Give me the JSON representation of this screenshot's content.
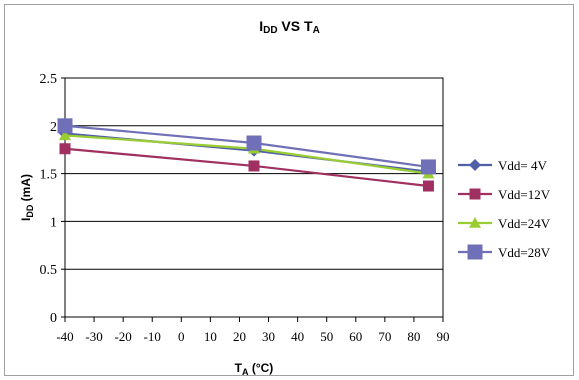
{
  "chart_data": {
    "type": "line",
    "title": {
      "main": "I",
      "sub": "DD",
      "mid": " VS T",
      "sub2": "A"
    },
    "xlabel": {
      "main": "T",
      "sub": "A",
      "rest": " (°C)"
    },
    "ylabel": {
      "main": "I",
      "sub": "DD",
      "rest": " (mA)"
    },
    "xlim": [
      -40,
      90
    ],
    "ylim": [
      0,
      2.5
    ],
    "x_ticks": [
      -40,
      -30,
      -20,
      -10,
      0,
      10,
      20,
      30,
      40,
      50,
      60,
      70,
      80,
      90
    ],
    "y_ticks": [
      0,
      0.5,
      1,
      1.5,
      2,
      2.5
    ],
    "y_tick_labels": [
      "0",
      "0.5",
      "1",
      "1.5",
      "2",
      "2.5"
    ],
    "grid": "horizontal",
    "legend_position": "right",
    "series": [
      {
        "name": "Vdd= 4V",
        "marker": "diamond",
        "color": "#4F5FA8",
        "x": [
          -40,
          25,
          85
        ],
        "y": [
          1.92,
          1.74,
          1.52
        ]
      },
      {
        "name": "Vdd=12V",
        "marker": "square",
        "color": "#A03060",
        "x": [
          -40,
          25,
          85
        ],
        "y": [
          1.76,
          1.58,
          1.37
        ]
      },
      {
        "name": "Vdd=24V",
        "marker": "triangle",
        "color": "#9ACD32",
        "x": [
          -40,
          25,
          85
        ],
        "y": [
          1.9,
          1.76,
          1.5
        ]
      },
      {
        "name": "Vdd=28V",
        "marker": "bigsquare",
        "color": "#7070B8",
        "x": [
          -40,
          25,
          85
        ],
        "y": [
          2.0,
          1.82,
          1.57
        ]
      }
    ]
  }
}
